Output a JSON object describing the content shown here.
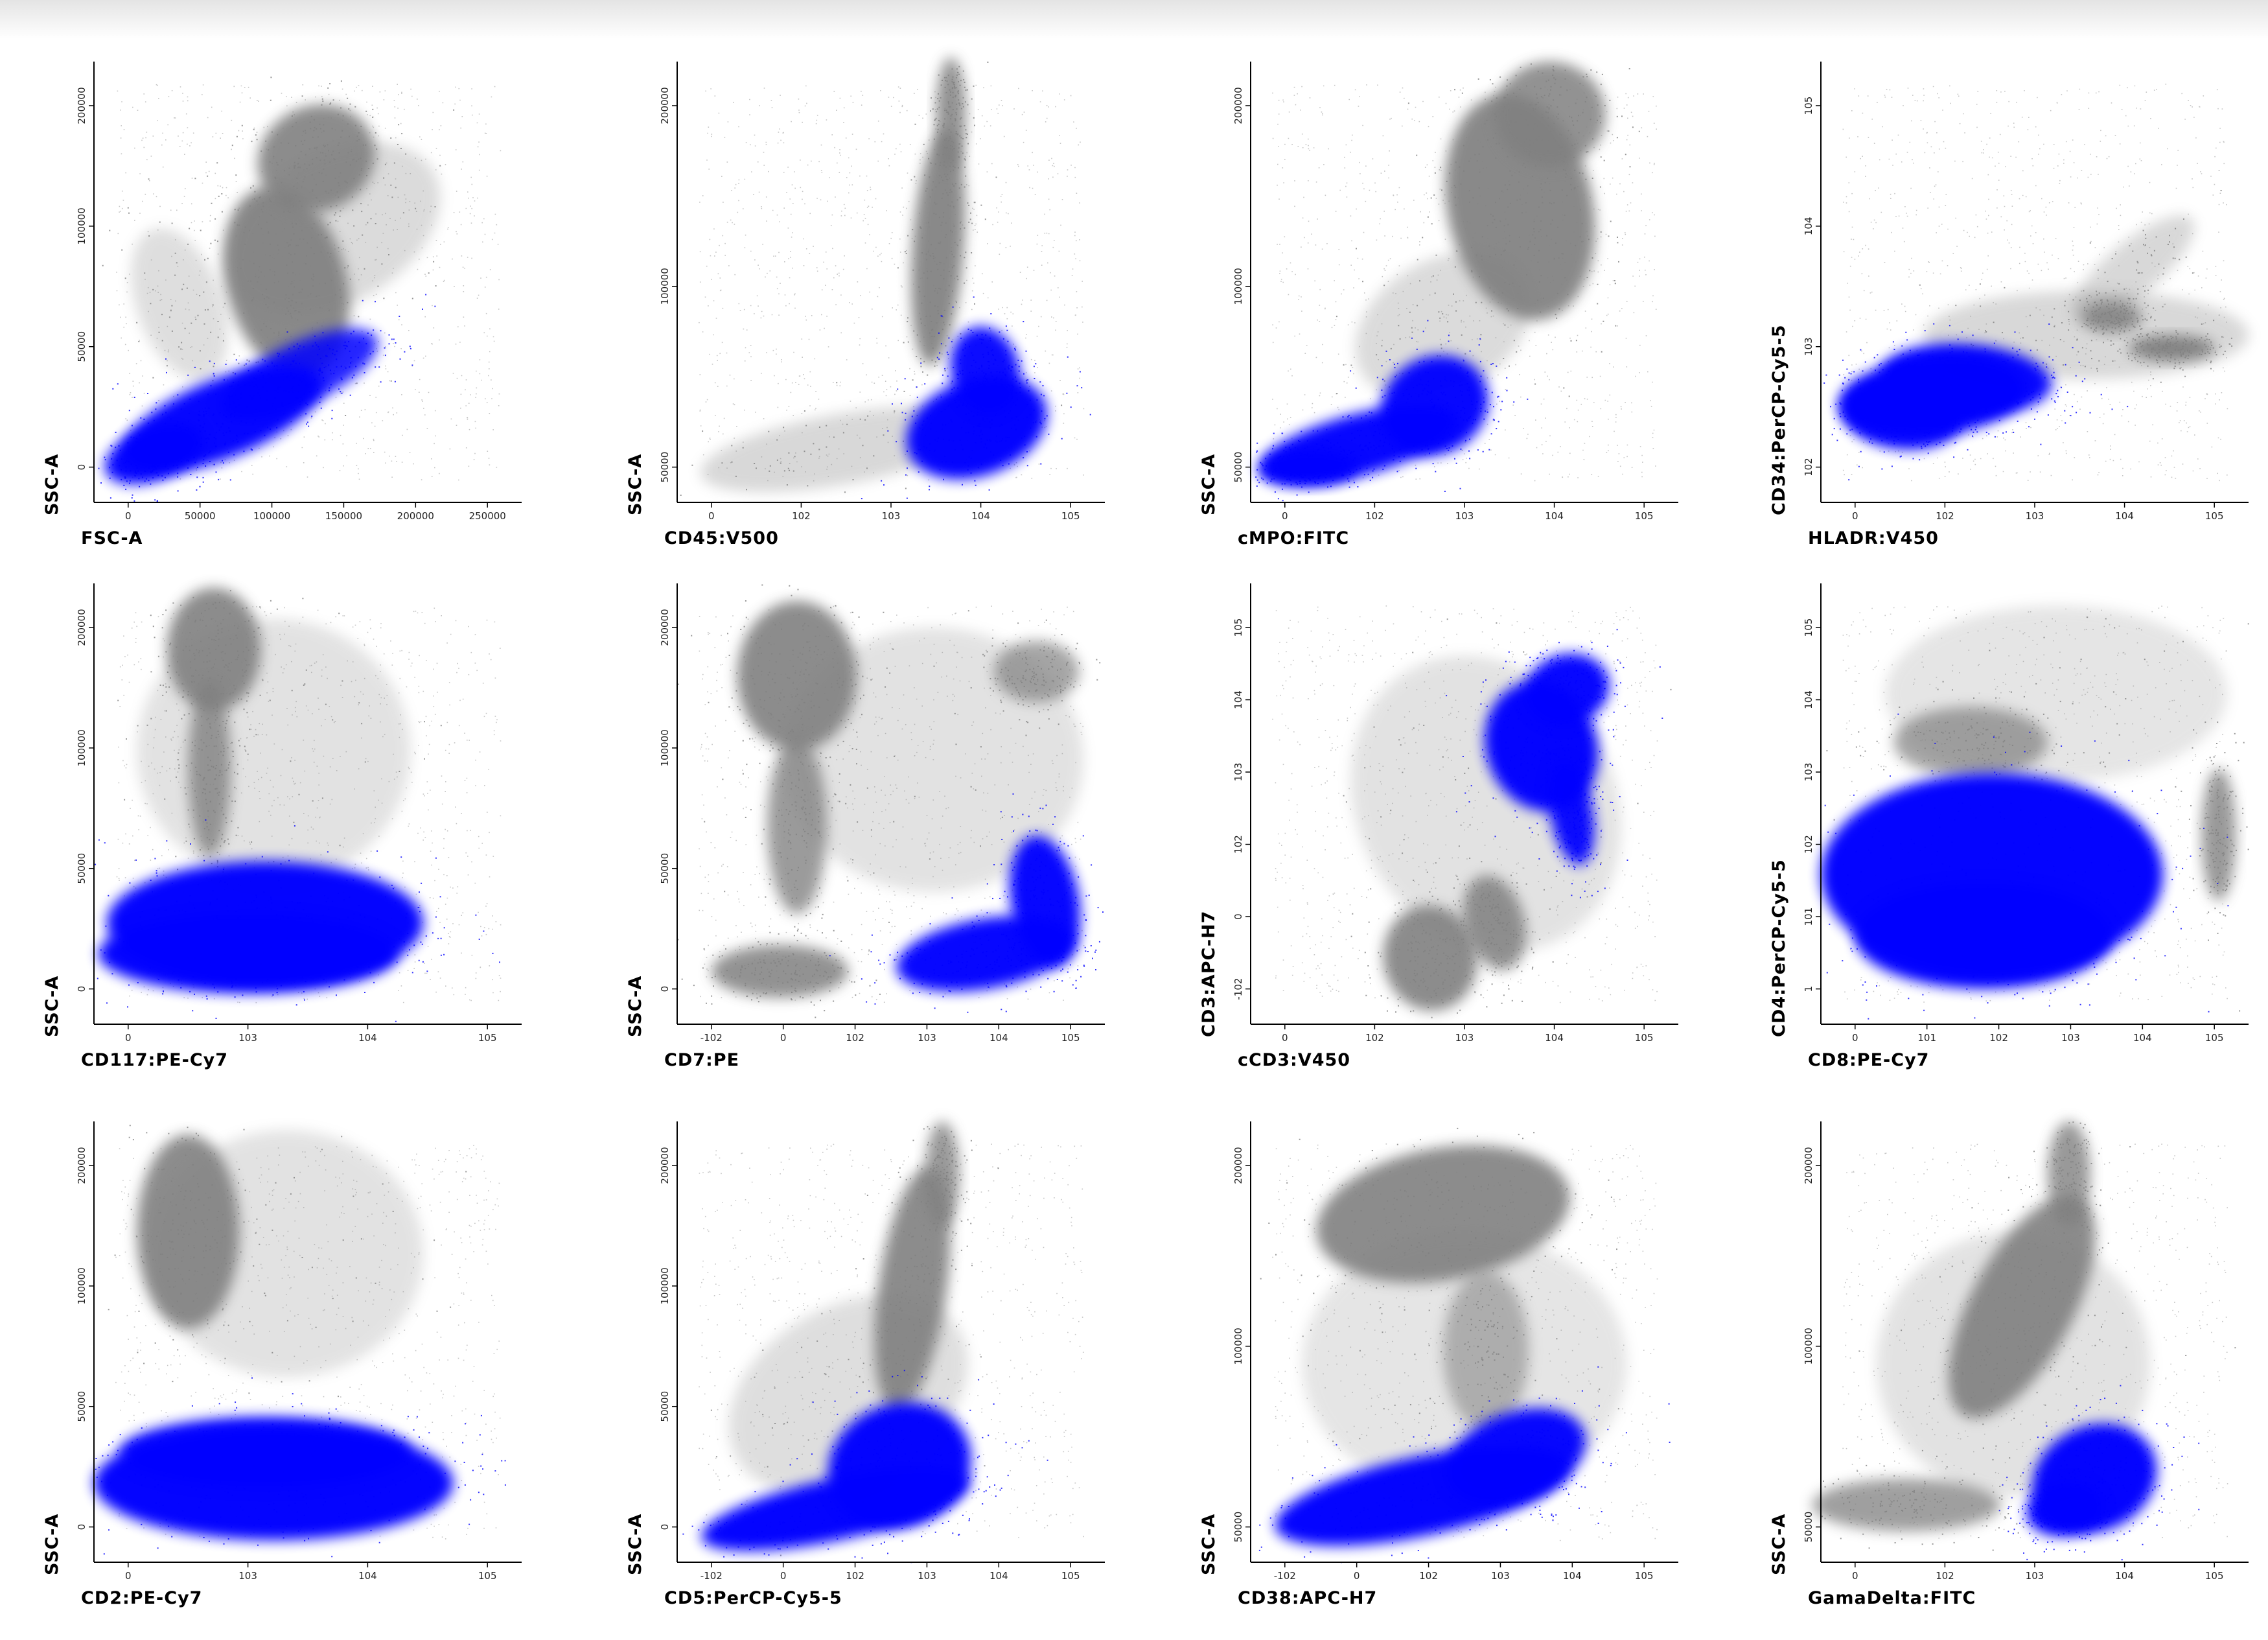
{
  "colors": {
    "background": "#ffffff",
    "gated_population": "#0000ff",
    "other_events": "#808080",
    "axis": "#000000"
  },
  "chart_data": [
    {
      "type": "scatter",
      "xlabel": "FSC-A",
      "ylabel": "SSC-A",
      "x_ticks": [
        "0",
        "50000",
        "100000",
        "150000",
        "200000",
        "250000"
      ],
      "y_ticks": [
        "0",
        "50000",
        "100000",
        "200000"
      ]
    },
    {
      "type": "scatter",
      "xlabel": "CD45:V500",
      "ylabel": "SSC-A",
      "x_ticks": [
        "0",
        "10^2",
        "10^3",
        "10^4",
        "10^5"
      ],
      "y_ticks": [
        "50000",
        "100000",
        "200000"
      ]
    },
    {
      "type": "scatter",
      "xlabel": "cMPO:FITC",
      "ylabel": "SSC-A",
      "x_ticks": [
        "0",
        "10^2",
        "10^3",
        "10^4",
        "10^5"
      ],
      "y_ticks": [
        "50000",
        "100000",
        "200000"
      ]
    },
    {
      "type": "scatter",
      "xlabel": "HLADR:V450",
      "ylabel": "CD34:PerCP-Cy5-5",
      "x_ticks": [
        "0",
        "10^2",
        "10^3",
        "10^4",
        "10^5"
      ],
      "y_ticks": [
        "10^2",
        "10^3",
        "10^4",
        "10^5"
      ]
    },
    {
      "type": "scatter",
      "xlabel": "CD117:PE-Cy7",
      "ylabel": "SSC-A",
      "x_ticks": [
        "0",
        "10^3",
        "10^4",
        "10^5"
      ],
      "y_ticks": [
        "0",
        "50000",
        "100000",
        "200000"
      ]
    },
    {
      "type": "scatter",
      "xlabel": "CD7:PE",
      "ylabel": "SSC-A",
      "x_ticks": [
        "-10^2",
        "0",
        "10^2",
        "10^3",
        "10^4",
        "10^5"
      ],
      "y_ticks": [
        "0",
        "50000",
        "100000",
        "200000"
      ]
    },
    {
      "type": "scatter",
      "xlabel": "cCD3:V450",
      "ylabel": "CD3:APC-H7",
      "x_ticks": [
        "0",
        "10^2",
        "10^3",
        "10^4",
        "10^5"
      ],
      "y_ticks": [
        "-10^2",
        "0",
        "10^2",
        "10^3",
        "10^4",
        "10^5"
      ]
    },
    {
      "type": "scatter",
      "xlabel": "CD8:PE-Cy7",
      "ylabel": "CD4:PerCP-Cy5-5",
      "x_ticks": [
        "0",
        "10^1",
        "10^2",
        "10^3",
        "10^4",
        "10^5"
      ],
      "y_ticks": [
        "1",
        "10^1",
        "10^2",
        "10^3",
        "10^4",
        "10^5"
      ]
    },
    {
      "type": "scatter",
      "xlabel": "CD2:PE-Cy7",
      "ylabel": "SSC-A",
      "x_ticks": [
        "0",
        "10^3",
        "10^4",
        "10^5"
      ],
      "y_ticks": [
        "0",
        "50000",
        "100000",
        "200000"
      ]
    },
    {
      "type": "scatter",
      "xlabel": "CD5:PerCP-Cy5-5",
      "ylabel": "SSC-A",
      "x_ticks": [
        "-10^2",
        "0",
        "10^2",
        "10^3",
        "10^4",
        "10^5"
      ],
      "y_ticks": [
        "0",
        "50000",
        "100000",
        "200000"
      ]
    },
    {
      "type": "scatter",
      "xlabel": "CD38:APC-H7",
      "ylabel": "SSC-A",
      "x_ticks": [
        "-10^2",
        "0",
        "10^2",
        "10^3",
        "10^4",
        "10^5"
      ],
      "y_ticks": [
        "50000",
        "100000",
        "200000"
      ]
    },
    {
      "type": "scatter",
      "xlabel": "GamaDelta:FITC",
      "ylabel": "SSC-A",
      "x_ticks": [
        "0",
        "10^2",
        "10^3",
        "10^4",
        "10^5"
      ],
      "y_ticks": [
        "50000",
        "100000",
        "200000"
      ]
    }
  ]
}
